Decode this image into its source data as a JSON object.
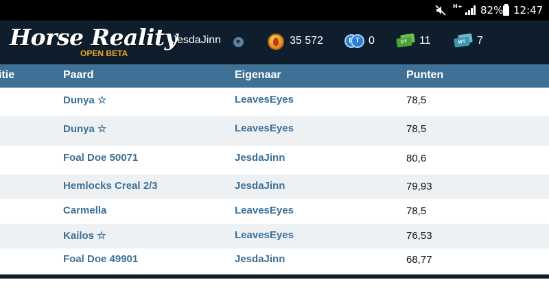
{
  "status_bar": {
    "network_type": "H+",
    "battery_percent": "82%",
    "time": "12:47",
    "icons": [
      "mute-icon",
      "signal-icon",
      "battery-icon"
    ]
  },
  "header": {
    "logo_text": "Horse Reality",
    "logo_subtext": "OPEN BETA",
    "username": "JesdaJinn",
    "currencies": [
      {
        "name": "coins",
        "icon": "coin-icon",
        "value": "35 572"
      },
      {
        "name": "dt",
        "icon": "dt-icon",
        "icon_text": "D",
        "value": "0"
      },
      {
        "name": "ft",
        "icon": "ft-ticket-icon",
        "icon_text": "FT",
        "value": "11"
      },
      {
        "name": "wt",
        "icon": "wt-ticket-icon",
        "icon_text": "WT",
        "value": "7"
      }
    ]
  },
  "table": {
    "columns": [
      "itie",
      "Paard",
      "Eigenaar",
      "Punten"
    ],
    "rows": [
      {
        "horse": "Dunya ☆",
        "owner": "LeavesEyes",
        "points": "78,5"
      },
      {
        "horse": "Dunya ☆",
        "owner": "LeavesEyes",
        "points": "78,5"
      },
      {
        "horse": "Foal Doe 50071",
        "owner": "JesdaJinn",
        "points": "80,6"
      },
      {
        "horse": "Hemlocks Creal 2/3",
        "owner": "JesdaJinn",
        "points": "79,93"
      },
      {
        "horse": "Carmella",
        "owner": "LeavesEyes",
        "points": "78,5"
      },
      {
        "horse": "Kailos ☆",
        "owner": "LeavesEyes",
        "points": "76,53"
      },
      {
        "horse": "Foal Doe 49901",
        "owner": "JesdaJinn",
        "points": "68,77"
      }
    ]
  },
  "colors": {
    "header_bg": "#0f1e2c",
    "table_header_bg": "#3f7196",
    "link": "#3b6f97",
    "row_alt": "#eef1f4",
    "logo_sub": "#f5a623"
  }
}
